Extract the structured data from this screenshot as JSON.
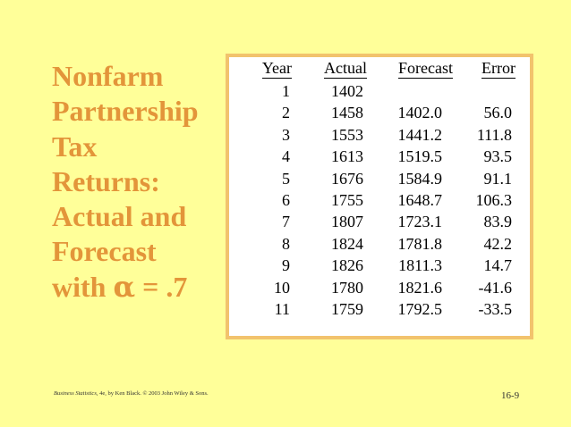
{
  "slide": {
    "title_lines": [
      "Nonfarm",
      "Partnership",
      "Tax",
      "Returns:",
      "Actual and",
      "Forecast",
      "with"
    ],
    "alpha_symbol": "α",
    "alpha_value": "= .7"
  },
  "table": {
    "columns": [
      "Year",
      "Actual",
      "Forecast",
      "Error"
    ],
    "rows": [
      {
        "year": "1",
        "actual": "1402",
        "forecast": "",
        "error": ""
      },
      {
        "year": "2",
        "actual": "1458",
        "forecast": "1402.0",
        "error": "56.0"
      },
      {
        "year": "3",
        "actual": "1553",
        "forecast": "1441.2",
        "error": "111.8"
      },
      {
        "year": "4",
        "actual": "1613",
        "forecast": "1519.5",
        "error": "93.5"
      },
      {
        "year": "5",
        "actual": "1676",
        "forecast": "1584.9",
        "error": "91.1"
      },
      {
        "year": "6",
        "actual": "1755",
        "forecast": "1648.7",
        "error": "106.3"
      },
      {
        "year": "7",
        "actual": "1807",
        "forecast": "1723.1",
        "error": "83.9"
      },
      {
        "year": "8",
        "actual": "1824",
        "forecast": "1781.8",
        "error": "42.2"
      },
      {
        "year": "9",
        "actual": "1826",
        "forecast": "1811.3",
        "error": "14.7"
      },
      {
        "year": "10",
        "actual": "1780",
        "forecast": "1821.6",
        "error": "-41.6"
      },
      {
        "year": "11",
        "actual": "1759",
        "forecast": "1792.5",
        "error": "-33.5"
      }
    ]
  },
  "footer": {
    "book": "Business Statistics",
    "credit": ", 4e, by Ken Black. © 2003 John Wiley & Sons.",
    "page": "16-9"
  },
  "colors": {
    "background": "#FFFF99",
    "title": "#E3953A",
    "table_border": "#F2C36D"
  }
}
